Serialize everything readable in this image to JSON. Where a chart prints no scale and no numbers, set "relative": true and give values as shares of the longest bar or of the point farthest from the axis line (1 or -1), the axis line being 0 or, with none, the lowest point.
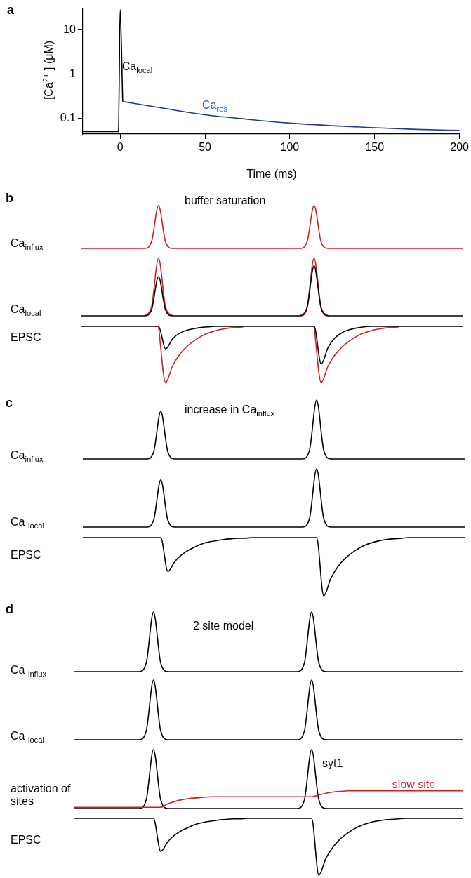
{
  "chart_data": [
    {
      "type": "line",
      "title": "a",
      "xlabel": "Time (ms)",
      "ylabel": "[Ca$^{2+}$ ] (μM)",
      "log": "y",
      "xlim": [
        -22,
        200
      ],
      "xticks": [
        0,
        50,
        100,
        150,
        200
      ],
      "ylim": [
        0.044,
        30
      ],
      "yticks": [
        0.1,
        1,
        10
      ],
      "series": [
        {
          "name": "Ca$_{local}$",
          "color": "#000000",
          "x": [
            -22,
            -1,
            0,
            1.5
          ],
          "values": [
            0.05,
            0.05,
            29,
            0.24
          ]
        },
        {
          "name": "Ca$_{res}$",
          "color": "#203a9a",
          "x": [
            1.5,
            25,
            50,
            75,
            100,
            125,
            150,
            175,
            200
          ],
          "values": [
            0.24,
            0.17,
            0.12,
            0.095,
            0.078,
            0.068,
            0.061,
            0.056,
            0.053
          ]
        }
      ]
    },
    {
      "type": "line",
      "relative": true,
      "title": "b",
      "subtitle": "buffer saturation",
      "ylabel": "Ca$_{influx}$",
      "categories": [
        null,
        null,
        null,
        null,
        null,
        null,
        null,
        null,
        null,
        null,
        null,
        null,
        null,
        null,
        null,
        null,
        null,
        null,
        null,
        null,
        null,
        null,
        null,
        null,
        null,
        null,
        null,
        null,
        null,
        null,
        null,
        null,
        null,
        null,
        null,
        null,
        null,
        null,
        null,
        null,
        null,
        null,
        null,
        null,
        null,
        null,
        null,
        null,
        null,
        null,
        null,
        null,
        null,
        null,
        null
      ],
      "series": [
        {
          "color": "#d11f1f",
          "values": [
            0,
            0,
            0,
            0,
            0,
            0,
            0,
            0,
            0,
            0,
            0.15,
            1,
            0.15,
            0,
            0,
            0,
            0,
            0,
            0,
            0,
            0,
            0,
            0,
            0,
            0,
            0,
            0,
            0,
            0,
            0,
            0,
            0,
            0.15,
            1,
            0.15,
            0,
            0,
            0,
            0,
            0,
            0,
            0,
            0,
            0,
            0,
            0,
            0,
            0,
            0,
            0,
            0,
            0,
            0,
            0,
            0
          ]
        }
      ]
    },
    {
      "type": "line",
      "relative": true,
      "ylabel": "Ca$_{local}$",
      "categories": [
        null,
        null,
        null,
        null,
        null,
        null,
        null,
        null,
        null,
        null,
        null,
        null,
        null,
        null,
        null,
        null,
        null,
        null,
        null,
        null,
        null,
        null,
        null,
        null,
        null,
        null,
        null,
        null,
        null,
        null,
        null,
        null,
        null,
        null,
        null,
        null,
        null,
        null,
        null,
        null,
        null,
        null,
        null,
        null,
        null,
        null,
        null,
        null,
        null,
        null,
        null,
        null,
        null,
        null,
        null
      ],
      "series": [
        {
          "color": "#d11f1f",
          "values": [
            null,
            null,
            null,
            null,
            null,
            null,
            null,
            null,
            null,
            0,
            0.15,
            1,
            0.15,
            0,
            null,
            null,
            null,
            null,
            null,
            null,
            null,
            null,
            null,
            null,
            null,
            null,
            null,
            null,
            null,
            null,
            null,
            0,
            0.15,
            1,
            0.15,
            0,
            null,
            null,
            null,
            null,
            null,
            null,
            null,
            null,
            null,
            null,
            null,
            null,
            null,
            null,
            null,
            null,
            null,
            null,
            null
          ]
        },
        {
          "color": "#000000",
          "values": [
            0,
            0,
            0,
            0,
            0,
            0,
            0,
            0,
            0,
            0,
            0.1,
            0.68,
            0.1,
            0,
            0,
            0,
            0,
            0,
            0,
            0,
            0,
            0,
            0,
            0,
            0,
            0,
            0,
            0,
            0,
            0,
            0,
            0,
            0.13,
            0.87,
            0.13,
            0,
            0,
            0,
            0,
            0,
            0,
            0,
            0,
            0,
            0,
            0,
            0,
            0,
            0,
            0,
            0,
            0,
            0,
            0,
            0
          ]
        }
      ]
    },
    {
      "type": "line",
      "relative": true,
      "ylabel": "EPSC",
      "categories": [
        null,
        null,
        null,
        null,
        null,
        null,
        null,
        null,
        null,
        null,
        null,
        null,
        null,
        null,
        null,
        null,
        null,
        null,
        null,
        null,
        null,
        null,
        null,
        null,
        null,
        null,
        null,
        null,
        null,
        null,
        null,
        null,
        null,
        null,
        null,
        null,
        null,
        null,
        null,
        null,
        null,
        null,
        null,
        null,
        null,
        null,
        null,
        null,
        null,
        null,
        null,
        null,
        null,
        null,
        null
      ],
      "series": [
        {
          "color": "#d11f1f",
          "values": [
            null,
            null,
            null,
            null,
            null,
            null,
            null,
            null,
            null,
            null,
            null,
            1,
            0,
            0.3,
            0.5,
            0.64,
            0.74,
            0.82,
            0.88,
            0.92,
            0.95,
            0.97,
            0.98,
            0.99,
            null,
            null,
            null,
            null,
            null,
            null,
            null,
            null,
            null,
            1,
            0,
            0.3,
            0.5,
            0.64,
            0.74,
            0.82,
            0.88,
            0.92,
            0.95,
            0.97,
            0.98,
            0.99,
            null,
            null,
            null,
            null,
            null,
            null,
            null,
            null,
            null
          ]
        },
        {
          "color": "#000000",
          "values": [
            1,
            1,
            1,
            1,
            1,
            1,
            1,
            1,
            1,
            1,
            1,
            1,
            0.6,
            0.78,
            0.88,
            0.93,
            0.96,
            0.98,
            0.99,
            1,
            1,
            1,
            1,
            1,
            1,
            1,
            1,
            1,
            1,
            1,
            1,
            1,
            1,
            1,
            0.33,
            0.63,
            0.8,
            0.89,
            0.94,
            0.97,
            0.99,
            1,
            1,
            1,
            1,
            1,
            1,
            1,
            1,
            1,
            1,
            1,
            1,
            1,
            1
          ]
        }
      ]
    },
    {
      "type": "line",
      "relative": true,
      "title": "c",
      "subtitle": "increase in Ca$_{influx}$",
      "ylabel": "Ca$_{influx}$",
      "categories": [
        null,
        null,
        null,
        null,
        null,
        null,
        null,
        null,
        null,
        null,
        null,
        null,
        null,
        null,
        null,
        null,
        null,
        null,
        null,
        null,
        null,
        null,
        null,
        null,
        null,
        null,
        null,
        null,
        null,
        null,
        null,
        null,
        null,
        null,
        null,
        null,
        null,
        null,
        null,
        null,
        null,
        null,
        null,
        null,
        null,
        null,
        null,
        null,
        null,
        null,
        null,
        null,
        null,
        null,
        null
      ],
      "series": [
        {
          "color": "#000000",
          "values": [
            0,
            0,
            0,
            0,
            0,
            0,
            0,
            0,
            0,
            0,
            0.12,
            0.81,
            0.12,
            0,
            0,
            0,
            0,
            0,
            0,
            0,
            0,
            0,
            0,
            0,
            0,
            0,
            0,
            0,
            0,
            0,
            0,
            0,
            0.15,
            1,
            0.15,
            0,
            0,
            0,
            0,
            0,
            0,
            0,
            0,
            0,
            0,
            0,
            0,
            0,
            0,
            0,
            0,
            0,
            0,
            0,
            0
          ]
        }
      ]
    },
    {
      "type": "line",
      "relative": true,
      "ylabel": "Ca $_{local}$",
      "categories": [
        null,
        null,
        null,
        null,
        null,
        null,
        null,
        null,
        null,
        null,
        null,
        null,
        null,
        null,
        null,
        null,
        null,
        null,
        null,
        null,
        null,
        null,
        null,
        null,
        null,
        null,
        null,
        null,
        null,
        null,
        null,
        null,
        null,
        null,
        null,
        null,
        null,
        null,
        null,
        null,
        null,
        null,
        null,
        null,
        null,
        null,
        null,
        null,
        null,
        null,
        null,
        null,
        null,
        null,
        null
      ],
      "series": [
        {
          "color": "#000000",
          "values": [
            0,
            0,
            0,
            0,
            0,
            0,
            0,
            0,
            0,
            0,
            0.12,
            0.81,
            0.12,
            0,
            0,
            0,
            0,
            0,
            0,
            0,
            0,
            0,
            0,
            0,
            0,
            0,
            0,
            0,
            0,
            0,
            0,
            0,
            0.15,
            1,
            0.15,
            0,
            0,
            0,
            0,
            0,
            0,
            0,
            0,
            0,
            0,
            0,
            0,
            0,
            0,
            0,
            0,
            0,
            0,
            0,
            0
          ]
        }
      ]
    },
    {
      "type": "line",
      "relative": true,
      "ylabel": "EPSC",
      "categories": [
        null,
        null,
        null,
        null,
        null,
        null,
        null,
        null,
        null,
        null,
        null,
        null,
        null,
        null,
        null,
        null,
        null,
        null,
        null,
        null,
        null,
        null,
        null,
        null,
        null,
        null,
        null,
        null,
        null,
        null,
        null,
        null,
        null,
        null,
        null,
        null,
        null,
        null,
        null,
        null,
        null,
        null,
        null,
        null,
        null,
        null,
        null,
        null,
        null,
        null,
        null,
        null,
        null,
        null,
        null
      ],
      "series": [
        {
          "color": "#000000",
          "values": [
            1,
            1,
            1,
            1,
            1,
            1,
            1,
            1,
            1,
            1,
            1,
            1,
            0.42,
            0.59,
            0.71,
            0.79,
            0.85,
            0.9,
            0.93,
            0.95,
            0.97,
            0.98,
            0.99,
            0.99,
            1,
            1,
            1,
            1,
            1,
            1,
            1,
            1,
            1,
            1,
            0,
            0.3,
            0.5,
            0.64,
            0.74,
            0.82,
            0.88,
            0.92,
            0.95,
            0.97,
            0.98,
            0.99,
            1,
            1,
            1,
            1,
            1,
            1,
            1,
            1,
            1
          ]
        }
      ]
    },
    {
      "type": "line",
      "relative": true,
      "title": "d",
      "subtitle": "2 site model",
      "ylabel": "Ca $_{influx}$",
      "categories": [
        null,
        null,
        null,
        null,
        null,
        null,
        null,
        null,
        null,
        null,
        null,
        null,
        null,
        null,
        null,
        null,
        null,
        null,
        null,
        null,
        null,
        null,
        null,
        null,
        null,
        null,
        null,
        null,
        null,
        null,
        null,
        null,
        null,
        null,
        null,
        null,
        null,
        null,
        null,
        null,
        null,
        null,
        null,
        null,
        null,
        null,
        null,
        null,
        null,
        null,
        null,
        null,
        null,
        null,
        null
      ],
      "series": [
        {
          "color": "#000000",
          "values": [
            0,
            0,
            0,
            0,
            0,
            0,
            0,
            0,
            0,
            0,
            0.15,
            1,
            0.15,
            0,
            0,
            0,
            0,
            0,
            0,
            0,
            0,
            0,
            0,
            0,
            0,
            0,
            0,
            0,
            0,
            0,
            0,
            0,
            0.15,
            1,
            0.15,
            0,
            0,
            0,
            0,
            0,
            0,
            0,
            0,
            0,
            0,
            0,
            0,
            0,
            0,
            0,
            0,
            0,
            0,
            0,
            0
          ]
        }
      ]
    },
    {
      "type": "line",
      "relative": true,
      "ylabel": "Ca $_{local}$",
      "categories": [
        null,
        null,
        null,
        null,
        null,
        null,
        null,
        null,
        null,
        null,
        null,
        null,
        null,
        null,
        null,
        null,
        null,
        null,
        null,
        null,
        null,
        null,
        null,
        null,
        null,
        null,
        null,
        null,
        null,
        null,
        null,
        null,
        null,
        null,
        null,
        null,
        null,
        null,
        null,
        null,
        null,
        null,
        null,
        null,
        null,
        null,
        null,
        null,
        null,
        null,
        null,
        null,
        null,
        null,
        null
      ],
      "series": [
        {
          "color": "#000000",
          "values": [
            0,
            0,
            0,
            0,
            0,
            0,
            0,
            0,
            0,
            0,
            0.15,
            1,
            0.15,
            0,
            0,
            0,
            0,
            0,
            0,
            0,
            0,
            0,
            0,
            0,
            0,
            0,
            0,
            0,
            0,
            0,
            0,
            0,
            0.15,
            1,
            0.15,
            0,
            0,
            0,
            0,
            0,
            0,
            0,
            0,
            0,
            0,
            0,
            0,
            0,
            0,
            0,
            0,
            0,
            0,
            0,
            0
          ]
        }
      ]
    },
    {
      "type": "line",
      "relative": true,
      "ylabel": "activation of sites",
      "categories": [
        null,
        null,
        null,
        null,
        null,
        null,
        null,
        null,
        null,
        null,
        null,
        null,
        null,
        null,
        null,
        null,
        null,
        null,
        null,
        null,
        null,
        null,
        null,
        null,
        null,
        null,
        null,
        null,
        null,
        null,
        null,
        null,
        null,
        null,
        null,
        null,
        null,
        null,
        null,
        null,
        null,
        null,
        null,
        null,
        null,
        null,
        null,
        null,
        null,
        null,
        null,
        null,
        null,
        null,
        null
      ],
      "series": [
        {
          "name": "syt1",
          "color": "#000000",
          "values": [
            0,
            0,
            0,
            0,
            0,
            0,
            0,
            0,
            0,
            0,
            0.15,
            1,
            0.15,
            0,
            0,
            0,
            0,
            0,
            0,
            0,
            0,
            0,
            0,
            0,
            0,
            0,
            0,
            0,
            0,
            0,
            0,
            0,
            0.15,
            1,
            0.15,
            0,
            0,
            0,
            0,
            0,
            0,
            0,
            0,
            0,
            0,
            0,
            0,
            0,
            0,
            0,
            0,
            0,
            0,
            0,
            0
          ]
        },
        {
          "name": "slow site",
          "color": "#d11f1f",
          "values": [
            0.02,
            0.02,
            0.02,
            0.02,
            0.02,
            0.02,
            0.02,
            0.02,
            0.02,
            0.02,
            0.02,
            0.02,
            0.02,
            0.08,
            0.12,
            0.15,
            0.17,
            0.18,
            0.19,
            0.2,
            0.2,
            0.2,
            0.2,
            0.2,
            0.2,
            0.2,
            0.2,
            0.2,
            0.2,
            0.2,
            0.2,
            0.2,
            0.2,
            0.2,
            0.23,
            0.26,
            0.28,
            0.29,
            0.3,
            0.3,
            0.3,
            0.3,
            0.3,
            0.3,
            0.3,
            0.3,
            0.3,
            0.3,
            0.3,
            0.3,
            0.3,
            0.3,
            0.3,
            0.3,
            0.3
          ]
        }
      ]
    },
    {
      "type": "line",
      "relative": true,
      "ylabel": "EPSC",
      "categories": [
        null,
        null,
        null,
        null,
        null,
        null,
        null,
        null,
        null,
        null,
        null,
        null,
        null,
        null,
        null,
        null,
        null,
        null,
        null,
        null,
        null,
        null,
        null,
        null,
        null,
        null,
        null,
        null,
        null,
        null,
        null,
        null,
        null,
        null,
        null,
        null,
        null,
        null,
        null,
        null,
        null,
        null,
        null,
        null,
        null,
        null,
        null,
        null,
        null,
        null,
        null,
        null,
        null,
        null,
        null
      ],
      "series": [
        {
          "color": "#000000",
          "values": [
            1,
            1,
            1,
            1,
            1,
            1,
            1,
            1,
            1,
            1,
            1,
            1,
            0.42,
            0.59,
            0.71,
            0.79,
            0.85,
            0.9,
            0.93,
            0.95,
            0.97,
            0.98,
            0.99,
            0.99,
            1,
            1,
            1,
            1,
            1,
            1,
            1,
            1,
            1,
            1,
            0,
            0.3,
            0.5,
            0.64,
            0.74,
            0.82,
            0.88,
            0.92,
            0.95,
            0.97,
            0.98,
            0.99,
            1,
            1,
            1,
            1,
            1,
            1,
            1,
            1,
            1
          ]
        }
      ]
    }
  ]
}
